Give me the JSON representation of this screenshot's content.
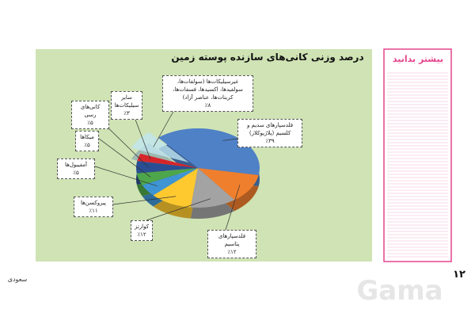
{
  "chart_data": {
    "type": "pie",
    "title": "درصد وزنی کانی‌های سازنده پوسته زمین",
    "categories": [
      "فلدسپارهای سدیم و کلسیم (پلاژیوکلاز)",
      "فلدسپارهای پتاسیم",
      "کوارتز",
      "پیروکسن‌ها",
      "آمفیبول‌ها",
      "میکاها",
      "کانی‌های رسی",
      "سایر سیلیکات‌ها",
      "غیرسیلیکات‌ها (سولفات‌ها، سولفیدها، اکسیدها، فسفات‌ها، کربنات‌ها، عناصر آزاد)"
    ],
    "values": [
      39,
      12,
      12,
      11,
      5,
      5,
      5,
      3,
      8
    ],
    "value_labels": [
      "٪۳۹",
      "٪۱۲",
      "٪۱۲",
      "٪۱۱",
      "٪۵",
      "٪۵",
      "٪۵",
      "٪۳",
      "٪۸"
    ],
    "colors": [
      "#4f81c7",
      "#f07f2d",
      "#a3a3a3",
      "#fdc92f",
      "#3f95d3",
      "#4ea64a",
      "#2a4e93",
      "#d6262a",
      "#bfe6f0"
    ]
  },
  "sidebar": {
    "title": "بیشتر بدانید"
  },
  "page_number": "۱۲",
  "signature": "سعودی",
  "watermark": "Gama"
}
